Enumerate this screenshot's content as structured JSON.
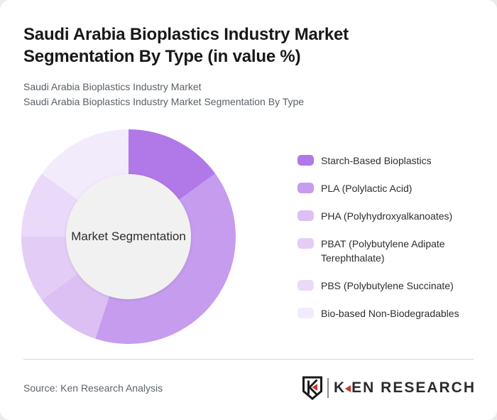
{
  "page": {
    "background": "#ececec",
    "card_background": "#ffffff"
  },
  "header": {
    "title": "Saudi Arabia Bioplastics Industry Market Segmentation By Type (in value %)",
    "subtitle_line1": "Saudi Arabia Bioplastics Industry Market",
    "subtitle_line2": "Saudi Arabia Bioplastics Industry Market Segmentation By Type"
  },
  "chart_data": {
    "type": "pie",
    "subtype": "donut",
    "title": "Saudi Arabia Bioplastics Industry Market Segmentation By Type (in value %)",
    "center_label": "Market Segmentation",
    "categories": [
      "Starch-Based Bioplastics",
      "PLA (Polylactic Acid)",
      "PHA (Polyhydroxyalkanoates)",
      "PBAT (Polybutylene Adipate Terephthalate)",
      "PBS (Polybutylene Succinate)",
      "Bio-based Non-Biodegradables"
    ],
    "values": [
      15,
      40,
      10,
      10,
      10,
      15
    ],
    "value_unit": "value %",
    "colors": [
      "#b178e7",
      "#c69cef",
      "#dcc0f4",
      "#e3cdf6",
      "#ead9f8",
      "#f2ebfb"
    ],
    "start_angle_deg": 0,
    "direction": "clockwise",
    "legend_position": "right",
    "center_hole_color": "#f1f1f1"
  },
  "footer": {
    "source": "Source: Ken Research Analysis",
    "logo": {
      "shield_letter": "K",
      "wordmark_first_letter": "K",
      "wordmark_rest": "EN RESEARCH",
      "accent_color": "#c3392f"
    }
  }
}
